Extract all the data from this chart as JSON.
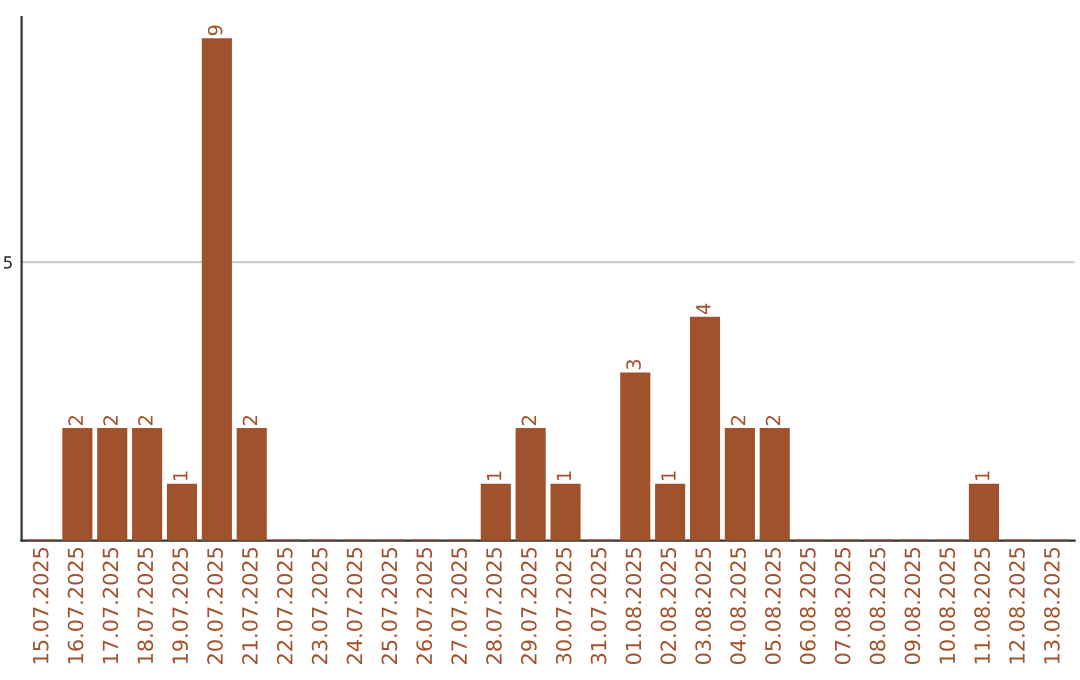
{
  "chart_data": {
    "type": "bar",
    "categories": [
      "15.07.2025",
      "16.07.2025",
      "17.07.2025",
      "18.07.2025",
      "19.07.2025",
      "20.07.2025",
      "21.07.2025",
      "22.07.2025",
      "23.07.2025",
      "24.07.2025",
      "25.07.2025",
      "26.07.2025",
      "27.07.2025",
      "28.07.2025",
      "29.07.2025",
      "30.07.2025",
      "31.07.2025",
      "01.08.2025",
      "02.08.2025",
      "03.08.2025",
      "04.08.2025",
      "05.08.2025",
      "06.08.2025",
      "07.08.2025",
      "08.08.2025",
      "09.08.2025",
      "10.08.2025",
      "11.08.2025",
      "12.08.2025",
      "13.08.2025"
    ],
    "values": [
      0,
      2,
      2,
      2,
      1,
      9,
      2,
      0,
      0,
      0,
      0,
      0,
      0,
      1,
      2,
      1,
      0,
      3,
      1,
      4,
      2,
      2,
      0,
      0,
      0,
      0,
      0,
      1,
      0,
      0
    ],
    "value_labels": [
      null,
      "2",
      "2",
      "2",
      "1",
      "9",
      "2",
      null,
      null,
      null,
      null,
      null,
      null,
      "1",
      "2",
      "1",
      null,
      "3",
      "1",
      "4",
      "2",
      "2",
      null,
      null,
      null,
      null,
      null,
      "1",
      null,
      null
    ],
    "color": "#a0522d",
    "ylim": [
      0,
      9.4
    ],
    "yticks": [
      5
    ],
    "grid": "y"
  }
}
